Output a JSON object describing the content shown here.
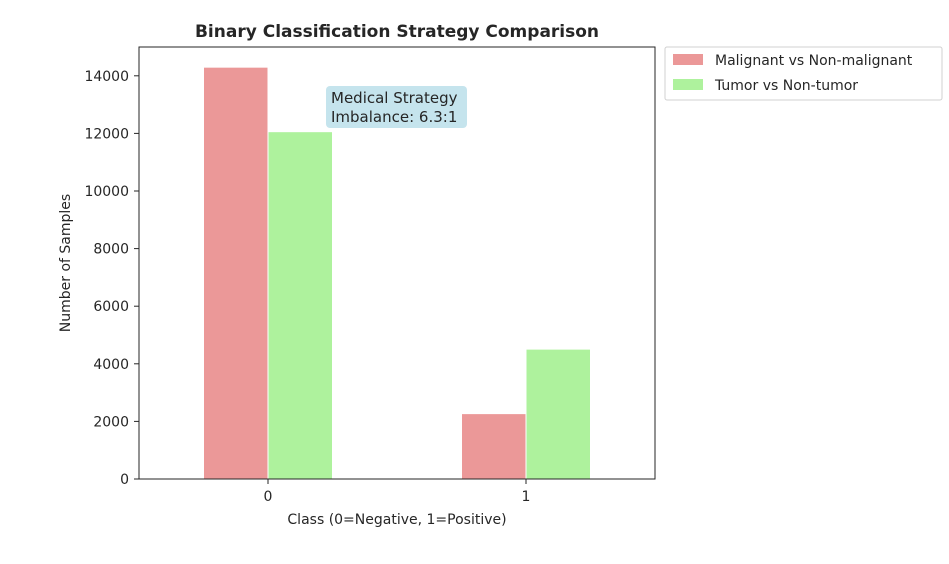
{
  "chart_data": {
    "type": "bar",
    "title": "Binary Classification Strategy Comparison",
    "xlabel": "Class (0=Negative, 1=Positive)",
    "ylabel": "Number of Samples",
    "categories": [
      "0",
      "1"
    ],
    "series": [
      {
        "name": "Malignant vs Non-malignant",
        "values": [
          14300,
          2270
        ],
        "color": "#eb9898"
      },
      {
        "name": "Tumor vs Non-tumor",
        "values": [
          12060,
          4510
        ],
        "color": "#aef29d"
      }
    ],
    "ylim": [
      0,
      15000
    ],
    "yticks": [
      0,
      2000,
      4000,
      6000,
      8000,
      10000,
      12000,
      14000
    ],
    "grid": false,
    "legend_position": "outside-top-right",
    "annotation": {
      "lines": [
        "Medical Strategy",
        "Imbalance: 6.3:1"
      ],
      "box_color": "#add8e6"
    }
  }
}
